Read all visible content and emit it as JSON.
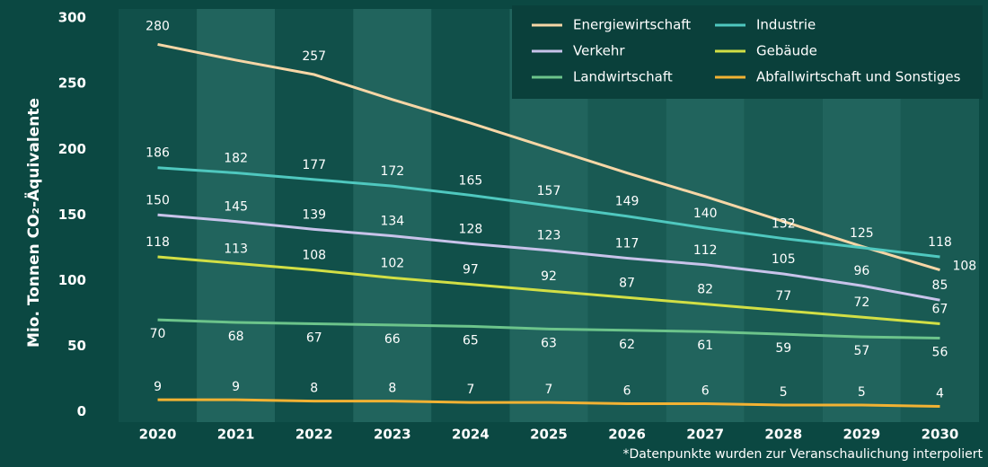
{
  "chart_data": {
    "type": "line",
    "y_label": "Mio. Tonnen CO₂-Äquivalente",
    "footnote": "*Datenpunkte wurden zur Veranschaulichung interpoliert",
    "x": [
      2020,
      2021,
      2022,
      2023,
      2024,
      2025,
      2026,
      2027,
      2028,
      2029,
      2030
    ],
    "xlim": [
      2019.5,
      2030.5
    ],
    "ylim": [
      -8,
      307
    ],
    "yticks": [
      0,
      50,
      100,
      150,
      200,
      250,
      300
    ],
    "series": [
      {
        "name": "Energiewirtschaft",
        "color": "#f6d6a6",
        "values": [
          280,
          268,
          257,
          238,
          220,
          201,
          182,
          164,
          145,
          126,
          108
        ],
        "value_labels": [
          "280",
          null,
          "257",
          null,
          null,
          null,
          null,
          null,
          null,
          null,
          "108"
        ]
      },
      {
        "name": "Industrie",
        "color": "#4fc8bf",
        "values": [
          186,
          182,
          177,
          172,
          165,
          157,
          149,
          140,
          132,
          125,
          118
        ]
      },
      {
        "name": "Verkehr",
        "color": "#c8c3ea",
        "values": [
          150,
          145,
          139,
          134,
          128,
          123,
          117,
          112,
          105,
          96,
          85
        ]
      },
      {
        "name": "Gebäude",
        "color": "#d2df45",
        "values": [
          118,
          113,
          108,
          102,
          97,
          92,
          87,
          82,
          77,
          72,
          67
        ]
      },
      {
        "name": "Landwirtschaft",
        "color": "#6cc48b",
        "values": [
          70,
          68,
          67,
          66,
          65,
          63,
          62,
          61,
          59,
          57,
          56
        ]
      },
      {
        "name": "Abfallwirtschaft und Sonstiges",
        "color": "#f2b233",
        "values": [
          9,
          9,
          8,
          8,
          7,
          7,
          6,
          6,
          5,
          5,
          4
        ]
      }
    ]
  }
}
